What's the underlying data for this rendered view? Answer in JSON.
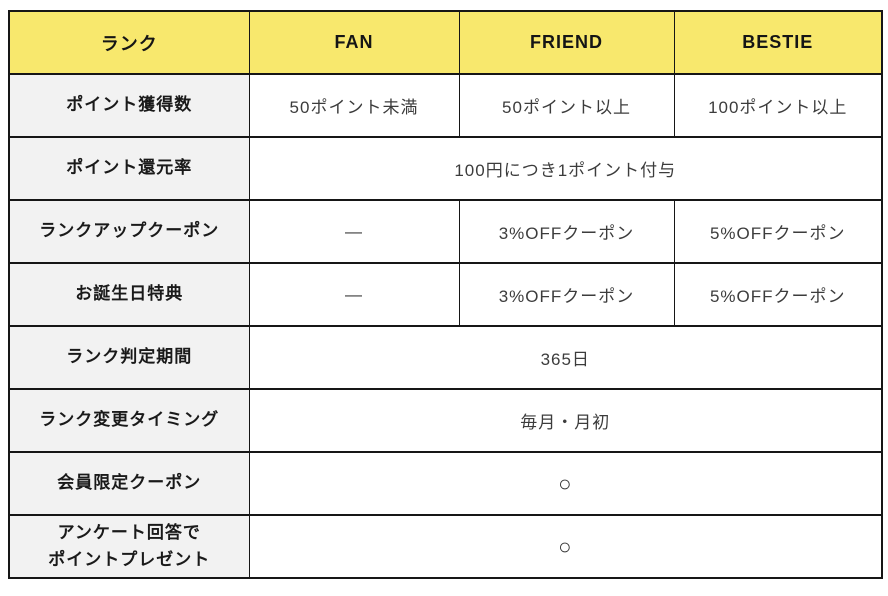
{
  "page": {
    "background": "#FFFFFF"
  },
  "table": {
    "header": {
      "rank_label": "ランク",
      "tiers": [
        "FAN",
        "FRIEND",
        "BESTIE"
      ]
    },
    "rows": [
      {
        "label": "ポイント獲得数",
        "cells": [
          "50ポイント未満",
          "50ポイント以上",
          "100ポイント以上"
        ]
      },
      {
        "label": "ポイント還元率",
        "span": "100円につき1ポイント付与"
      },
      {
        "label": "ランクアップクーポン",
        "cells": [
          "―",
          "3%OFFクーポン",
          "5%OFFクーポン"
        ]
      },
      {
        "label": "お誕生日特典",
        "cells": [
          "―",
          "3%OFFクーポン",
          "5%OFFクーポン"
        ]
      },
      {
        "label": "ランク判定期間",
        "span": "365日"
      },
      {
        "label": "ランク変更タイミング",
        "span": "毎月・月初"
      },
      {
        "label": "会員限定クーポン",
        "span": "○"
      },
      {
        "label": "アンケート回答で\nポイントプレゼント",
        "span": "○"
      }
    ],
    "colors": {
      "header_bg": "#F8E86D",
      "label_bg": "#F2F2F2",
      "border": "#161616",
      "label_text": "#1A1A1A",
      "value_text": "#3C3C3C"
    }
  },
  "chart_data": {
    "type": "table",
    "columns": [
      "ランク",
      "FAN",
      "FRIEND",
      "BESTIE"
    ],
    "rows": [
      {
        "label": "ポイント獲得数",
        "FAN": "50ポイント未満",
        "FRIEND": "50ポイント以上",
        "BESTIE": "100ポイント以上"
      },
      {
        "label": "ポイント還元率",
        "all_tiers": "100円につき1ポイント付与"
      },
      {
        "label": "ランクアップクーポン",
        "FAN": "―",
        "FRIEND": "3%OFFクーポン",
        "BESTIE": "5%OFFクーポン"
      },
      {
        "label": "お誕生日特典",
        "FAN": "―",
        "FRIEND": "3%OFFクーポン",
        "BESTIE": "5%OFFクーポン"
      },
      {
        "label": "ランク判定期間",
        "all_tiers": "365日"
      },
      {
        "label": "ランク変更タイミング",
        "all_tiers": "毎月・月初"
      },
      {
        "label": "会員限定クーポン",
        "all_tiers": "○"
      },
      {
        "label": "アンケート回答でポイントプレゼント",
        "all_tiers": "○"
      }
    ],
    "layout": {
      "grid": true,
      "header_row_highlight": "#F8E86D",
      "label_column_highlight": "#F2F2F2"
    }
  }
}
